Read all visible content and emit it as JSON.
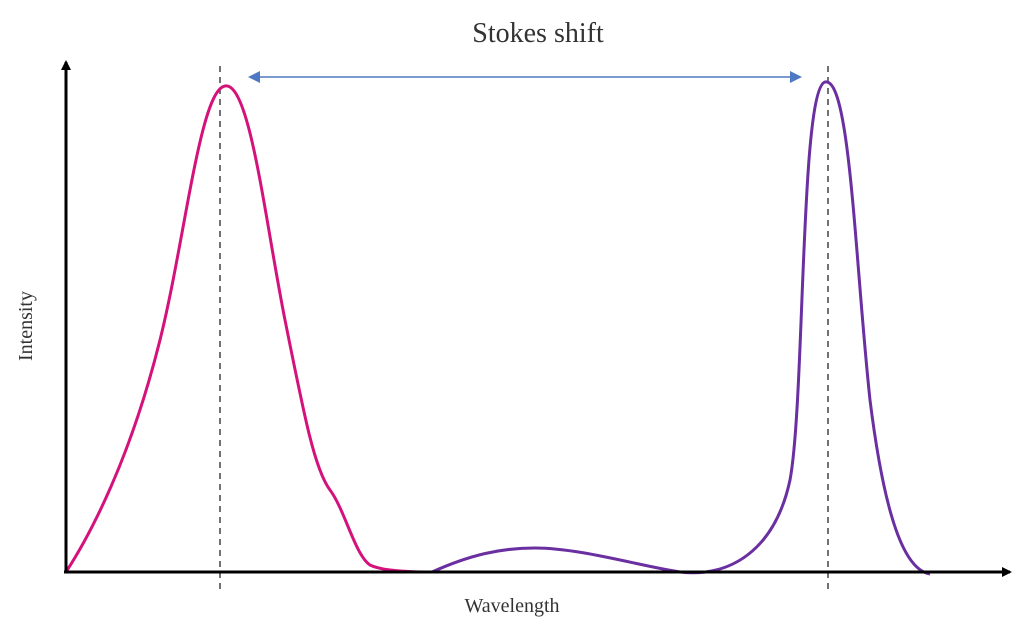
{
  "title": "Stokes shift",
  "xlabel": "Wavelength",
  "ylabel": "Intensity",
  "colors": {
    "axes": "#000000",
    "absorption_curve": "#d4127c",
    "emission_curve": "#6a2fa0",
    "shift_arrow": "#4f78c2",
    "guide_lines": "#444444",
    "text": "#333333"
  }
}
